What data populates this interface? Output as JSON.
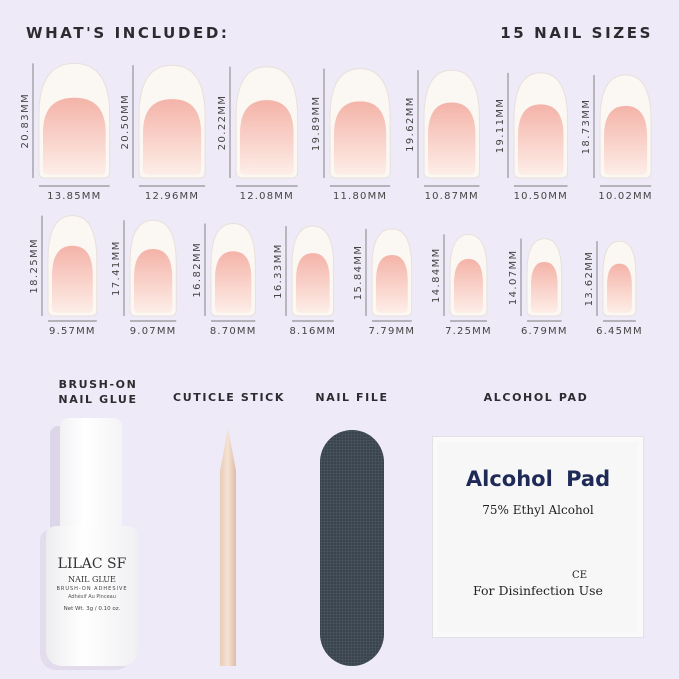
{
  "header": {
    "left": "WHAT'S INCLUDED:",
    "right": "15 NAIL SIZES"
  },
  "nails": {
    "row1": [
      {
        "length": "20.83MM",
        "width": "13.85MM"
      },
      {
        "length": "20.50MM",
        "width": "12.96MM"
      },
      {
        "length": "20.22MM",
        "width": "12.08MM"
      },
      {
        "length": "19.89MM",
        "width": "11.80MM"
      },
      {
        "length": "19.62MM",
        "width": "10.87MM"
      },
      {
        "length": "19.11MM",
        "width": "10.50MM"
      },
      {
        "length": "18.73MM",
        "width": "10.02MM"
      }
    ],
    "row2": [
      {
        "length": "18.25MM",
        "width": "9.57MM"
      },
      {
        "length": "17.41MM",
        "width": "9.07MM"
      },
      {
        "length": "16.82MM",
        "width": "8.70MM"
      },
      {
        "length": "16.33MM",
        "width": "8.16MM"
      },
      {
        "length": "15.84MM",
        "width": "7.79MM"
      },
      {
        "length": "14.84MM",
        "width": "7.25MM"
      },
      {
        "length": "14.07MM",
        "width": "6.79MM"
      },
      {
        "length": "13.62MM",
        "width": "6.45MM"
      }
    ]
  },
  "items": {
    "glue": {
      "label1": "BRUSH-ON",
      "label2": "NAIL GLUE",
      "brand": "LILAC SF",
      "title": "NAIL GLUE",
      "sub": "BRUSH-ON ADHESIVE",
      "sub2": "Adhésif Au Pinceau",
      "weight": "Net Wt. 3g / 0.10 oz."
    },
    "stick": {
      "label": "CUTICLE STICK"
    },
    "file": {
      "label": "NAIL FILE"
    },
    "pad": {
      "label": "ALCOHOL PAD",
      "title": "Alcohol Pad",
      "sub": "75% Ethyl Alcohol",
      "mark": "CE",
      "use": "For Disinfection Use"
    }
  },
  "colors": {
    "background": "#efeaf7",
    "nail_tip": "#fbf7f2",
    "nail_pink": "#f4b9ae"
  }
}
